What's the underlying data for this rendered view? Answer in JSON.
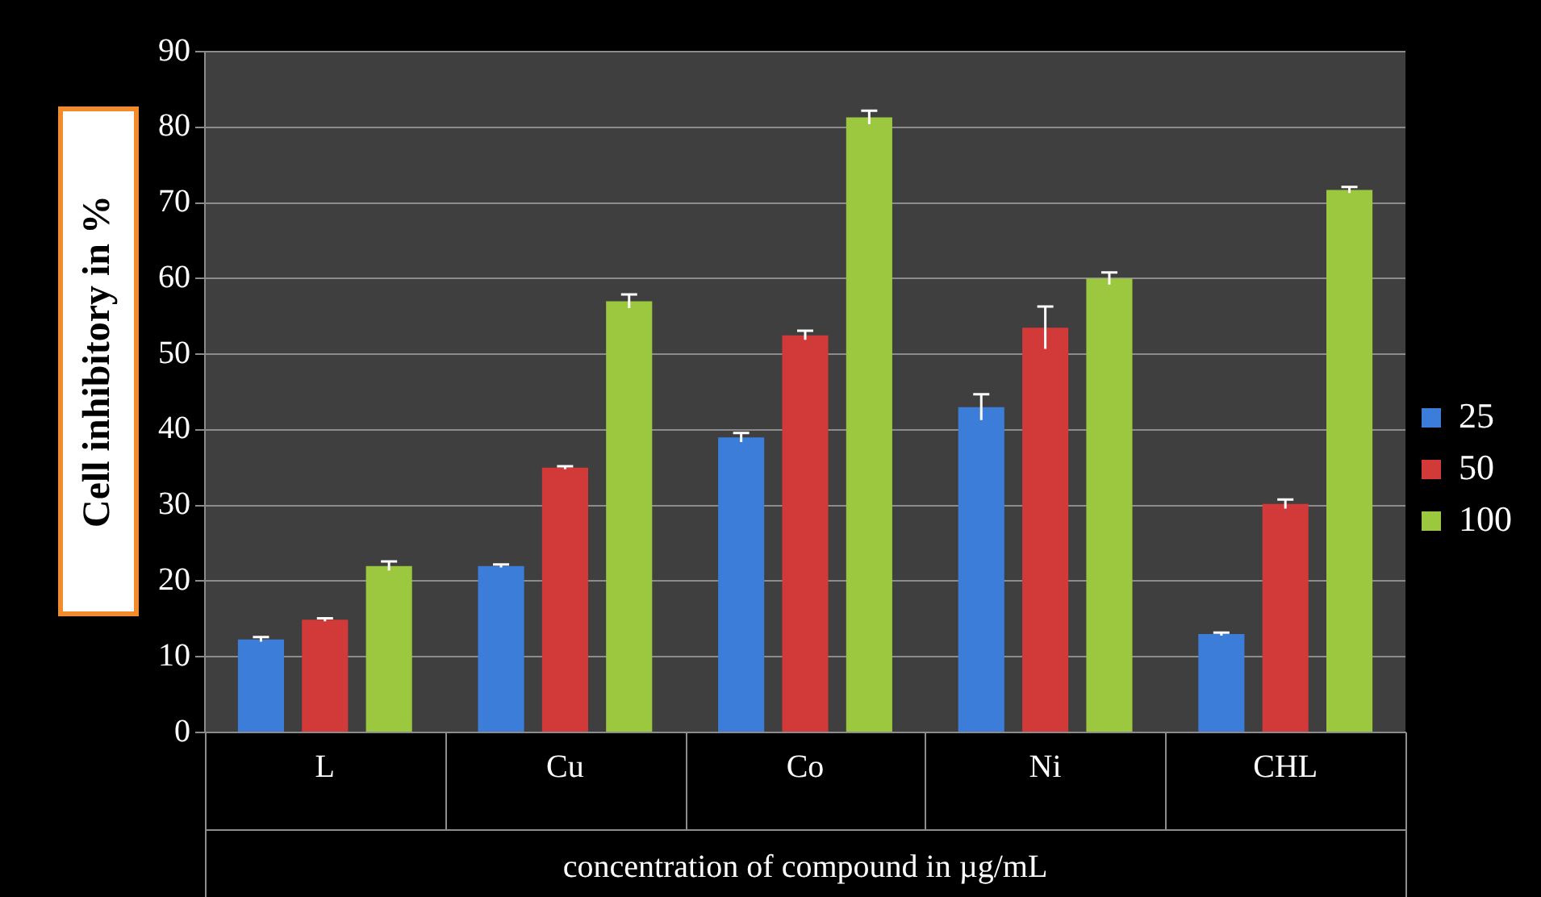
{
  "chart_data": {
    "type": "bar",
    "ylabel": "Cell inhibitory in %",
    "xlabel": "concentration of compound in µg/mL",
    "categories": [
      "L",
      "Cu",
      "Co",
      "Ni",
      "CHL"
    ],
    "series": [
      {
        "name": "25",
        "color": "#3b7dd8",
        "values": [
          12.3,
          22,
          39,
          43,
          13
        ],
        "errors": [
          0.3,
          0.2,
          0.6,
          1.7,
          0.2
        ]
      },
      {
        "name": "50",
        "color": "#d23a3a",
        "values": [
          14.9,
          35,
          52.5,
          53.5,
          30.2
        ],
        "errors": [
          0.2,
          0.2,
          0.6,
          2.8,
          0.6
        ]
      },
      {
        "name": "100",
        "color": "#9cc83f",
        "values": [
          22,
          57,
          81.3,
          60,
          71.7
        ],
        "errors": [
          0.6,
          0.9,
          0.9,
          0.8,
          0.4
        ]
      }
    ],
    "ylim": [
      0,
      90
    ],
    "yticks": [
      0,
      10,
      20,
      30,
      40,
      50,
      60,
      70,
      80,
      90
    ],
    "grid": "y",
    "legend": "right"
  }
}
